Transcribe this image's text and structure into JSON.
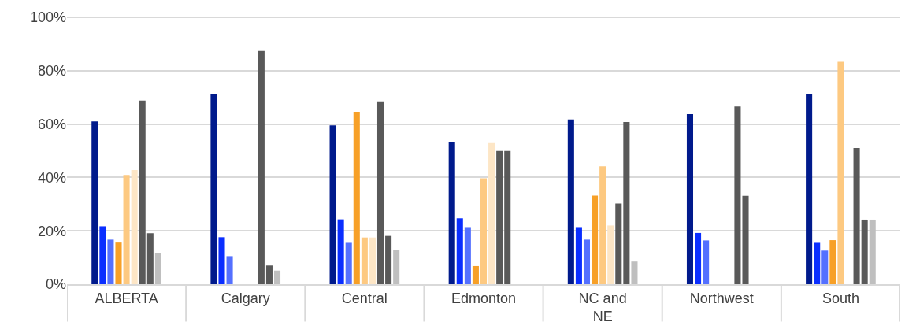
{
  "chart_data": {
    "type": "bar",
    "categories": [
      "ALBERTA",
      "Calgary",
      "Central",
      "Edmonton",
      "NC and NE",
      "Northwest",
      "South"
    ],
    "series": [
      {
        "color": "#001a8c",
        "values": [
          61.0,
          71.4,
          59.5,
          53.4,
          61.7,
          63.7,
          71.4
        ]
      },
      {
        "color": "#0a2eff",
        "values": [
          21.7,
          17.6,
          24.3,
          24.7,
          21.4,
          19.2,
          15.5
        ]
      },
      {
        "color": "#5470ff",
        "values": [
          16.7,
          10.5,
          15.5,
          21.4,
          16.7,
          16.4,
          12.6
        ]
      },
      {
        "color": "#f7a027",
        "values": [
          15.6,
          null,
          64.6,
          6.8,
          33.2,
          null,
          16.5
        ]
      },
      {
        "color": "#fdc981",
        "values": [
          40.9,
          null,
          17.5,
          39.7,
          44.2,
          null,
          83.3
        ]
      },
      {
        "color": "#fde6c6",
        "values": [
          42.8,
          null,
          17.5,
          52.9,
          22.0,
          null,
          null
        ]
      },
      {
        "color": "#595959",
        "values": [
          68.8,
          87.4,
          68.5,
          49.9,
          30.2,
          66.6,
          51.0
        ]
      },
      {
        "color": "#595959",
        "values": [
          19.1,
          7.0,
          18.1,
          49.9,
          60.8,
          33.1,
          24.2
        ]
      },
      {
        "color": "#bfbfbf",
        "values": [
          11.6,
          5.1,
          12.9,
          null,
          8.5,
          null,
          24.2
        ]
      }
    ],
    "ylim": [
      0,
      100
    ],
    "yticks": [
      {
        "value": 0,
        "label": "0%"
      },
      {
        "value": 20,
        "label": "20%"
      },
      {
        "value": 40,
        "label": "40%"
      },
      {
        "value": 60,
        "label": "60%"
      },
      {
        "value": 80,
        "label": "80%"
      },
      {
        "value": 100,
        "label": "100%"
      }
    ],
    "grid": "y"
  }
}
